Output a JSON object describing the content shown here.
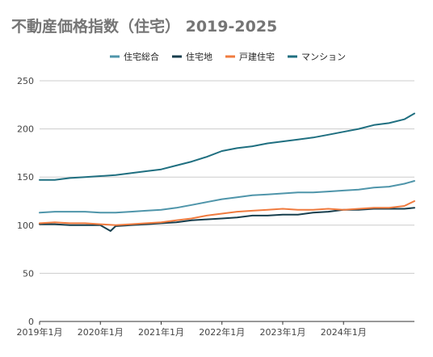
{
  "chart_data": {
    "type": "line",
    "title": "不動産価格指数（住宅） 2019-2025",
    "xlabel": "",
    "ylabel": "",
    "ylim": [
      0,
      250
    ],
    "y_ticks": [
      0,
      50,
      100,
      150,
      200,
      250
    ],
    "x_tick_labels": [
      "2019年1月",
      "2020年1月",
      "2021年1月",
      "2022年1月",
      "2023年1月",
      "2024年1月"
    ],
    "x_start": "2019-01",
    "x_end": "2025-03",
    "grid": "horizontal",
    "legend_position": "top",
    "series": [
      {
        "name": "住宅総合",
        "color": "#4f95aa",
        "points": [
          [
            "2019-01",
            113
          ],
          [
            "2019-04",
            114
          ],
          [
            "2019-07",
            114
          ],
          [
            "2019-10",
            114
          ],
          [
            "2020-01",
            113
          ],
          [
            "2020-04",
            113
          ],
          [
            "2020-07",
            114
          ],
          [
            "2020-10",
            115
          ],
          [
            "2021-01",
            116
          ],
          [
            "2021-04",
            118
          ],
          [
            "2021-07",
            121
          ],
          [
            "2021-10",
            124
          ],
          [
            "2022-01",
            127
          ],
          [
            "2022-04",
            129
          ],
          [
            "2022-07",
            131
          ],
          [
            "2022-10",
            132
          ],
          [
            "2023-01",
            133
          ],
          [
            "2023-04",
            134
          ],
          [
            "2023-07",
            134
          ],
          [
            "2023-10",
            135
          ],
          [
            "2024-01",
            136
          ],
          [
            "2024-04",
            137
          ],
          [
            "2024-07",
            139
          ],
          [
            "2024-10",
            140
          ],
          [
            "2025-01",
            143
          ],
          [
            "2025-03",
            146
          ]
        ]
      },
      {
        "name": "住宅地",
        "color": "#173e4d",
        "points": [
          [
            "2019-01",
            101
          ],
          [
            "2019-04",
            101
          ],
          [
            "2019-07",
            100
          ],
          [
            "2019-10",
            100
          ],
          [
            "2020-01",
            100
          ],
          [
            "2020-03",
            94
          ],
          [
            "2020-04",
            99
          ],
          [
            "2020-07",
            100
          ],
          [
            "2020-10",
            101
          ],
          [
            "2021-01",
            102
          ],
          [
            "2021-04",
            103
          ],
          [
            "2021-07",
            105
          ],
          [
            "2021-10",
            106
          ],
          [
            "2022-01",
            107
          ],
          [
            "2022-04",
            108
          ],
          [
            "2022-07",
            110
          ],
          [
            "2022-10",
            110
          ],
          [
            "2023-01",
            111
          ],
          [
            "2023-04",
            111
          ],
          [
            "2023-07",
            113
          ],
          [
            "2023-10",
            114
          ],
          [
            "2024-01",
            116
          ],
          [
            "2024-04",
            116
          ],
          [
            "2024-07",
            117
          ],
          [
            "2024-10",
            117
          ],
          [
            "2025-01",
            117
          ],
          [
            "2025-03",
            118
          ]
        ]
      },
      {
        "name": "戸建住宅",
        "color": "#f07b3f",
        "points": [
          [
            "2019-01",
            102
          ],
          [
            "2019-04",
            103
          ],
          [
            "2019-07",
            102
          ],
          [
            "2019-10",
            102
          ],
          [
            "2020-01",
            101
          ],
          [
            "2020-04",
            100
          ],
          [
            "2020-07",
            101
          ],
          [
            "2020-10",
            102
          ],
          [
            "2021-01",
            103
          ],
          [
            "2021-04",
            105
          ],
          [
            "2021-07",
            107
          ],
          [
            "2021-10",
            110
          ],
          [
            "2022-01",
            112
          ],
          [
            "2022-04",
            114
          ],
          [
            "2022-07",
            115
          ],
          [
            "2022-10",
            116
          ],
          [
            "2023-01",
            117
          ],
          [
            "2023-04",
            116
          ],
          [
            "2023-07",
            116
          ],
          [
            "2023-10",
            117
          ],
          [
            "2024-01",
            116
          ],
          [
            "2024-04",
            117
          ],
          [
            "2024-07",
            118
          ],
          [
            "2024-10",
            118
          ],
          [
            "2025-01",
            120
          ],
          [
            "2025-03",
            125
          ]
        ]
      },
      {
        "name": "マンション",
        "color": "#1f6f80",
        "points": [
          [
            "2019-01",
            147
          ],
          [
            "2019-04",
            147
          ],
          [
            "2019-07",
            149
          ],
          [
            "2019-10",
            150
          ],
          [
            "2020-01",
            151
          ],
          [
            "2020-04",
            152
          ],
          [
            "2020-07",
            154
          ],
          [
            "2020-10",
            156
          ],
          [
            "2021-01",
            158
          ],
          [
            "2021-04",
            162
          ],
          [
            "2021-07",
            166
          ],
          [
            "2021-10",
            171
          ],
          [
            "2022-01",
            177
          ],
          [
            "2022-04",
            180
          ],
          [
            "2022-07",
            182
          ],
          [
            "2022-10",
            185
          ],
          [
            "2023-01",
            187
          ],
          [
            "2023-04",
            189
          ],
          [
            "2023-07",
            191
          ],
          [
            "2023-10",
            194
          ],
          [
            "2024-01",
            197
          ],
          [
            "2024-04",
            200
          ],
          [
            "2024-07",
            204
          ],
          [
            "2024-10",
            206
          ],
          [
            "2025-01",
            210
          ],
          [
            "2025-03",
            216
          ]
        ]
      }
    ]
  }
}
